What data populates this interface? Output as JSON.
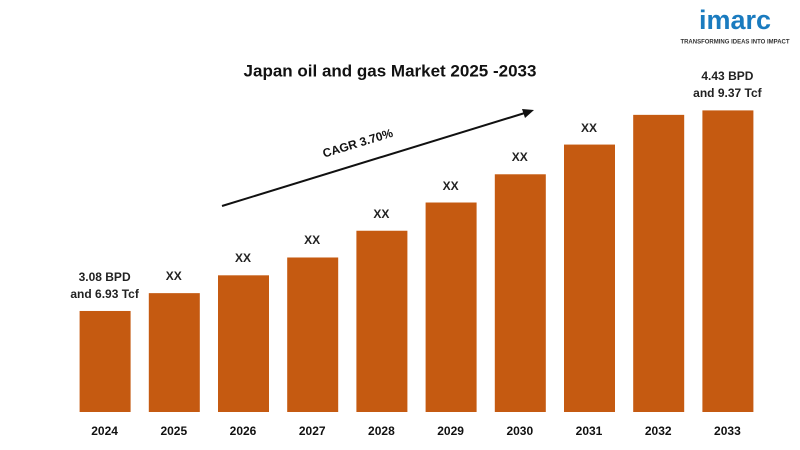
{
  "chart_data": {
    "type": "bar",
    "title": "Japan oil and gas Market 2025 -2033",
    "annotation": "CAGR 3.70%",
    "categories": [
      "2024",
      "2025",
      "2026",
      "2027",
      "2028",
      "2029",
      "2030",
      "2031",
      "2032",
      "2033"
    ],
    "values": [
      3.08,
      3.2,
      3.32,
      3.44,
      3.62,
      3.81,
      4.0,
      4.2,
      4.4,
      4.43
    ],
    "value_labels": [
      "3.08 BPD\nand 6.93 Tcf",
      "XX",
      "XX",
      "XX",
      "XX",
      "XX",
      "XX",
      "XX",
      null,
      "4.43 BPD\nand 9.37 Tcf"
    ],
    "color": "#c55a11",
    "ylim": [
      2.4,
      4.5
    ]
  },
  "logo": {
    "name": "imarc",
    "tagline": "TRANSFORMING IDEAS INTO IMPACT"
  }
}
